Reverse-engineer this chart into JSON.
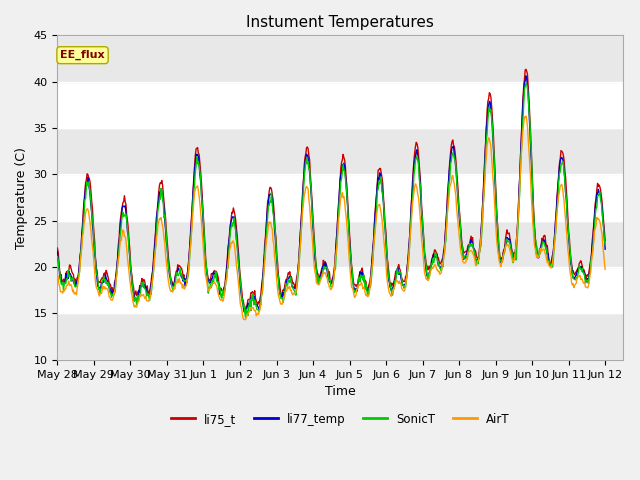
{
  "title": "Instument Temperatures",
  "xlabel": "Time",
  "ylabel": "Temperature (C)",
  "ylim": [
    10,
    45
  ],
  "gray_band": [
    35,
    45
  ],
  "gray_band2": [
    20,
    25
  ],
  "annotation_text": "EE_flux",
  "series_colors": {
    "li75_t": "#cc0000",
    "li77_temp": "#0000cc",
    "SonicT": "#00cc00",
    "AirT": "#ff9900"
  },
  "x_tick_labels": [
    "May 28",
    "May 29",
    "May 30",
    "May 31",
    "Jun 1",
    "Jun 2",
    "Jun 3",
    "Jun 4",
    "Jun 5",
    "Jun 6",
    "Jun 7",
    "Jun 8",
    "Jun 9",
    "Jun 10",
    "Jun 11",
    "Jun 12"
  ],
  "x_tick_positions": [
    0,
    1,
    2,
    3,
    4,
    5,
    6,
    7,
    8,
    9,
    10,
    11,
    12,
    13,
    14,
    15
  ],
  "background_color": "#e8e8e8",
  "plot_bg_color": "#ffffff",
  "title_fontsize": 11,
  "tick_fontsize": 8,
  "label_fontsize": 9,
  "linewidth": 1.0
}
